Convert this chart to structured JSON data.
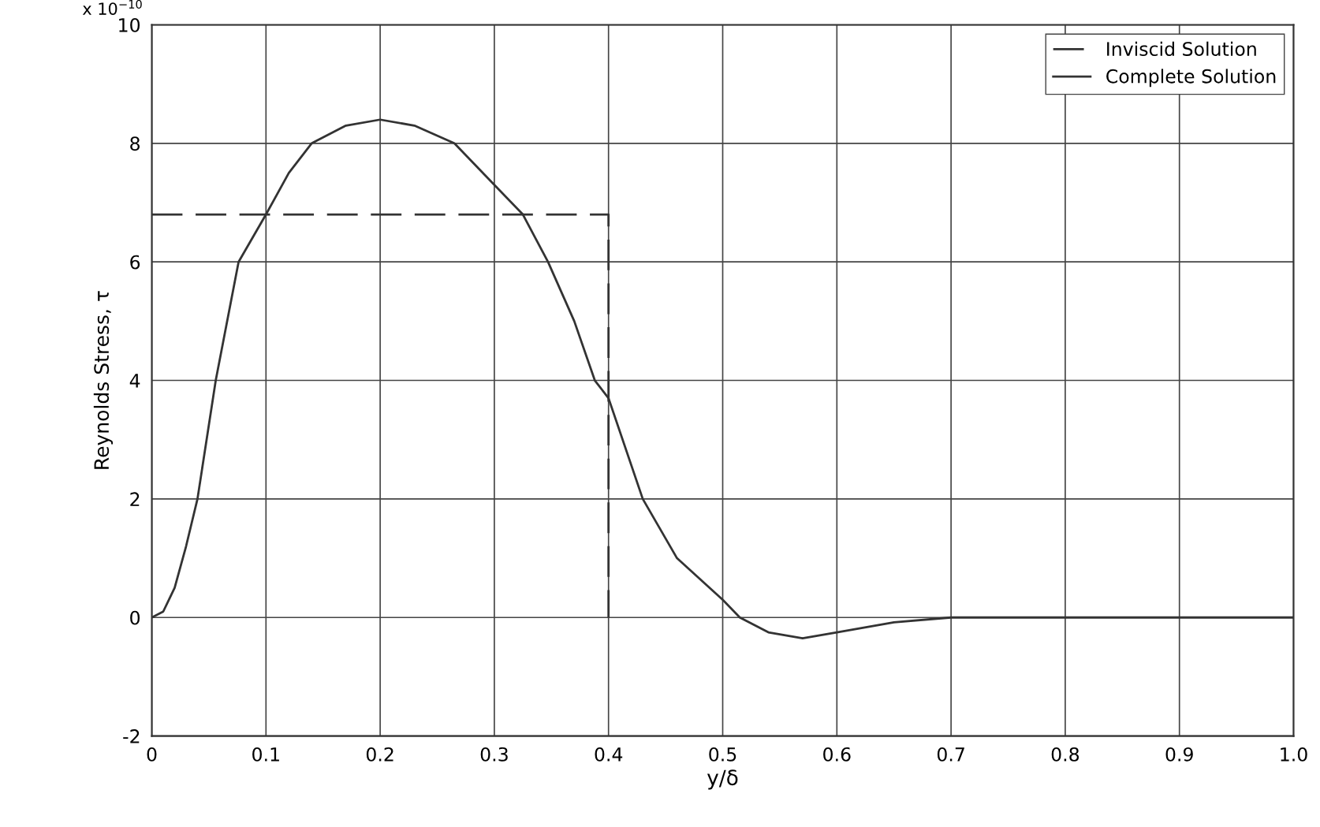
{
  "chart_data": {
    "type": "line",
    "xlabel": "y/δ",
    "ylabel": "Reynolds Stress, τ",
    "series": [
      {
        "name": "Inviscid Solution",
        "color": "#333333",
        "line_style": "dashed",
        "x": [
          0,
          0.4,
          0.4
        ],
        "values": [
          6.8,
          6.8,
          0
        ]
      },
      {
        "name": "Complete Solution",
        "color": "#333333",
        "line_style": "solid",
        "x": [
          0,
          0.01,
          0.02,
          0.03,
          0.04,
          0.056,
          0.076,
          0.1,
          0.12,
          0.14,
          0.17,
          0.2,
          0.23,
          0.265,
          0.3,
          0.325,
          0.347,
          0.37,
          0.388,
          0.4,
          0.43,
          0.46,
          0.5,
          0.515,
          0.54,
          0.57,
          0.6,
          0.65,
          0.7,
          0.8,
          0.9,
          1.0
        ],
        "values": [
          0,
          0.1,
          0.5,
          1.2,
          2,
          4,
          6,
          6.8,
          7.5,
          8,
          8.3,
          8.4,
          8.3,
          8,
          7.3,
          6.8,
          6,
          5,
          4,
          3.7,
          2,
          1,
          0.3,
          0,
          -0.25,
          -0.35,
          -0.25,
          -0.08,
          0,
          0,
          0,
          0
        ]
      }
    ],
    "xlim": [
      0,
      1.0
    ],
    "ylim": [
      -2,
      10
    ],
    "xticks": [
      0,
      0.1,
      0.2,
      0.3,
      0.4,
      0.5,
      0.6,
      0.7,
      0.8,
      0.9,
      {
        "value": 1,
        "label": "1.0"
      }
    ],
    "yticks": [
      -2,
      0,
      2,
      4,
      6,
      8,
      10
    ],
    "annotations": [
      "x 10$^{−10}$"
    ],
    "grid": true,
    "legend": "top right",
    "marker": "none"
  }
}
